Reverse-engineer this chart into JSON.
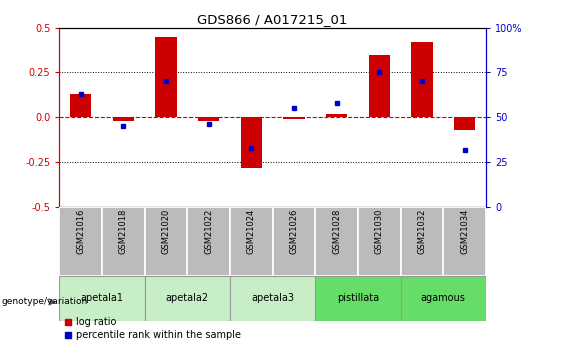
{
  "title": "GDS866 / A017215_01",
  "samples": [
    "GSM21016",
    "GSM21018",
    "GSM21020",
    "GSM21022",
    "GSM21024",
    "GSM21026",
    "GSM21028",
    "GSM21030",
    "GSM21032",
    "GSM21034"
  ],
  "log_ratios": [
    0.13,
    -0.02,
    0.45,
    -0.02,
    -0.28,
    -0.01,
    0.02,
    0.35,
    0.42,
    -0.07
  ],
  "percentile_ranks": [
    63,
    45,
    70,
    46,
    33,
    55,
    58,
    75,
    70,
    32
  ],
  "groups_info": [
    {
      "label": "apetala1",
      "start": 0,
      "end": 1,
      "color": "#c8eec8"
    },
    {
      "label": "apetala2",
      "start": 2,
      "end": 3,
      "color": "#c8eec8"
    },
    {
      "label": "apetala3",
      "start": 4,
      "end": 5,
      "color": "#c8eec8"
    },
    {
      "label": "pistillata",
      "start": 6,
      "end": 7,
      "color": "#66dd66"
    },
    {
      "label": "agamous",
      "start": 8,
      "end": 9,
      "color": "#66dd66"
    }
  ],
  "ylim": [
    -0.5,
    0.5
  ],
  "yticks_left": [
    -0.5,
    -0.25,
    0.0,
    0.25,
    0.5
  ],
  "yticks_right": [
    0,
    25,
    50,
    75,
    100
  ],
  "bar_color": "#cc0000",
  "dot_color": "#0000cc",
  "ref_line_color": "#cc0000",
  "sample_box_color": "#bbbbbb",
  "sample_box_edge": "#888888",
  "legend_items": [
    "log ratio",
    "percentile rank within the sample"
  ],
  "legend_colors": [
    "#cc0000",
    "#0000cc"
  ],
  "genotype_label": "genotype/variation"
}
